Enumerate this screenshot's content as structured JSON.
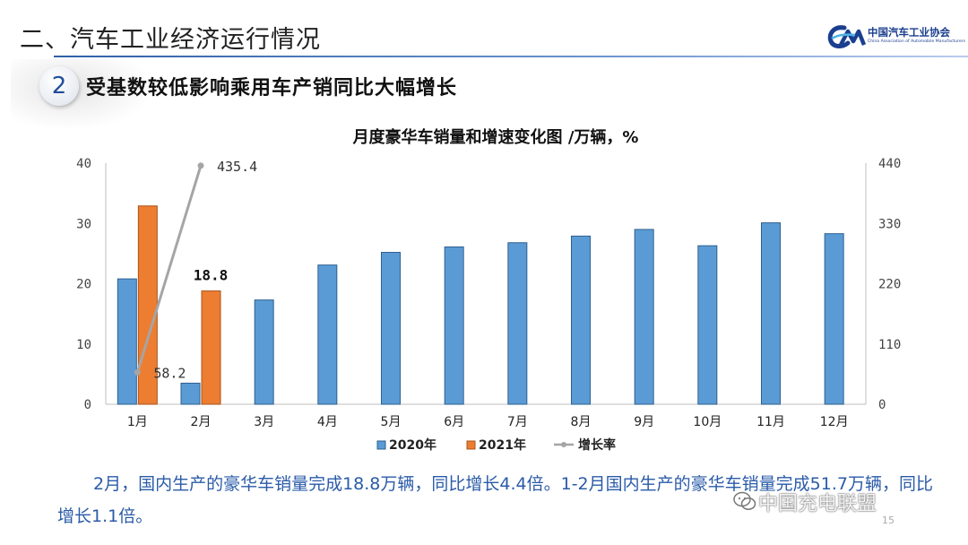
{
  "header": {
    "section_title": "二、汽车工业经济运行情况",
    "logo_cn": "中国汽车工业协会",
    "logo_en": "China Association of Automobile Manufacturers",
    "badge_number": "2",
    "subtitle": "受基数较低影响乘用车产销同比大幅增长"
  },
  "colors": {
    "series_2020": "#5b9bd5",
    "series_2021": "#ed7d31",
    "growth_line": "#a5a5a5",
    "accent_blue": "#2a5ba8"
  },
  "chart_data": {
    "type": "bar",
    "title": "月度豪华车销量和增速变化图 /万辆，%",
    "categories": [
      "1月",
      "2月",
      "3月",
      "4月",
      "5月",
      "6月",
      "7月",
      "8月",
      "9月",
      "10月",
      "11月",
      "12月"
    ],
    "series": [
      {
        "name": "2020年",
        "type": "bar",
        "axis": "left",
        "values": [
          20.8,
          3.5,
          17.3,
          23.1,
          25.2,
          26.1,
          26.8,
          27.9,
          29.0,
          26.3,
          30.1,
          28.3
        ]
      },
      {
        "name": "2021年",
        "type": "bar",
        "axis": "left",
        "values": [
          32.9,
          18.8,
          null,
          null,
          null,
          null,
          null,
          null,
          null,
          null,
          null,
          null
        ]
      },
      {
        "name": "增长率",
        "type": "line",
        "axis": "right",
        "values": [
          58.2,
          435.4,
          null,
          null,
          null,
          null,
          null,
          null,
          null,
          null,
          null,
          null
        ]
      }
    ],
    "data_labels": [
      {
        "series": "2021年",
        "category": "2月",
        "text": "18.8"
      },
      {
        "series": "增长率",
        "category": "1月",
        "text": "58.2"
      },
      {
        "series": "增长率",
        "category": "2月",
        "text": "435.4"
      }
    ],
    "y_left": {
      "min": 0,
      "max": 40,
      "ticks": [
        "0",
        "10",
        "20",
        "30",
        "40"
      ]
    },
    "y_right": {
      "min": 0,
      "max": 440,
      "ticks": [
        "0",
        "110",
        "220",
        "330",
        "440"
      ]
    },
    "legend": [
      "2020年",
      "2021年",
      "增长率"
    ],
    "legend_position": "bottom",
    "grid": false
  },
  "caption": {
    "text": "2月，国内生产的豪华车销量完成18.8万辆，同比增长4.4倍。1-2月国内生产的豪华车销量完成51.7万辆，同比增长1.1倍。"
  },
  "watermark": {
    "text": "中国充电联盟"
  },
  "page_number": "15"
}
